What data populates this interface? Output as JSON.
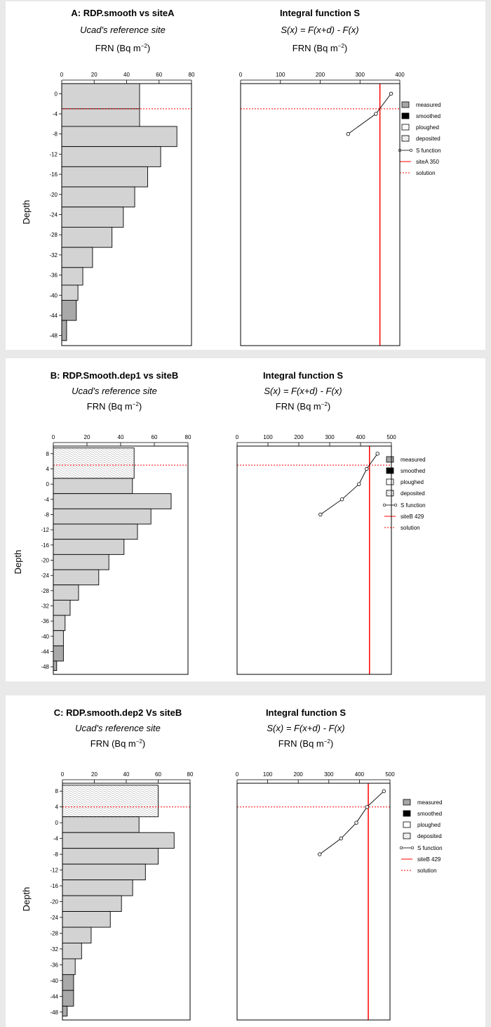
{
  "panels": [
    {
      "left": {
        "title": "A: RDP.smooth vs siteA",
        "subtitle": "Ucad's reference site",
        "xlabel": "FRN (Bq m",
        "xlabel_sup": "−2",
        "xlabel_close": ")",
        "ylabel": "Depth"
      },
      "right": {
        "title": "Integral function S",
        "subtitle": "S(x) = F(x+d) - F(x)",
        "xlabel": "FRN (Bq m",
        "xlabel_sup": "−2",
        "xlabel_close": ")"
      },
      "legend": {
        "measured": "measured",
        "smoothed": "smoothed",
        "ploughed": "ploughed",
        "deposited": "deposited",
        "sfunction": "S function",
        "site": "siteA 350",
        "solution": "solution"
      }
    },
    {
      "left": {
        "title": "B: RDP.Smooth.dep1 vs siteB",
        "subtitle": "Ucad's reference site",
        "xlabel": "FRN (Bq m",
        "xlabel_sup": "−2",
        "xlabel_close": ")",
        "ylabel": "Depth"
      },
      "right": {
        "title": "Integral function S",
        "subtitle": "S(x) = F(x+d) - F(x)",
        "xlabel": "FRN (Bq m",
        "xlabel_sup": "−2",
        "xlabel_close": ")"
      },
      "legend": {
        "measured": "measured",
        "smoothed": "smoothed",
        "ploughed": "ploughed",
        "deposited": "deposited",
        "sfunction": "S function",
        "site": "siteB 429",
        "solution": "solution"
      }
    },
    {
      "left": {
        "title": "C: RDP.smooth.dep2 Vs siteB",
        "subtitle": "Ucad's reference site",
        "xlabel": "FRN (Bq m",
        "xlabel_sup": "−2",
        "xlabel_close": ")",
        "ylabel": "Depth"
      },
      "right": {
        "title": "Integral function S",
        "subtitle": "S(x) = F(x+d) - F(x)",
        "xlabel": "FRN (Bq m",
        "xlabel_sup": "−2",
        "xlabel_close": ")"
      },
      "legend": {
        "measured": "measured",
        "smoothed": "smoothed",
        "ploughed": "ploughed",
        "deposited": "deposited",
        "sfunction": "S function",
        "site": "siteB 429",
        "solution": "solution"
      }
    }
  ],
  "colors": {
    "measured": "#a6a6a6",
    "smoothed": "#000000",
    "ploughed": "#ffffff",
    "deposited": "#d3d3d3",
    "site_line": "#ff0000",
    "solution_line": "#ff0000",
    "bar_fill": "#d3d3d3",
    "measured_bar_fill": "#a9a9a9"
  },
  "chart_data": [
    {
      "type": "bar",
      "orientation": "horizontal",
      "title": "A: RDP.smooth vs siteA",
      "subtitle": "Ucad's reference site",
      "xlabel": "FRN (Bq m−2)",
      "ylabel": "Depth",
      "xlim": [
        0,
        80
      ],
      "xticks": [
        0,
        20,
        40,
        60,
        80
      ],
      "ylim": [
        -50,
        2
      ],
      "yticks": [
        0,
        -4,
        -8,
        -12,
        -16,
        -20,
        -24,
        -28,
        -32,
        -36,
        -40,
        -44,
        -48
      ],
      "solution_depth": -3,
      "bars": [
        {
          "top": 2,
          "bottom": -3,
          "value": 48,
          "kind": "smoothed_fill"
        },
        {
          "top": -3,
          "bottom": -6.5,
          "value": 48,
          "kind": "smoothed_fill"
        },
        {
          "top": -6.5,
          "bottom": -10.5,
          "value": 71,
          "kind": "smoothed_fill"
        },
        {
          "top": -10.5,
          "bottom": -14.5,
          "value": 61,
          "kind": "smoothed_fill"
        },
        {
          "top": -14.5,
          "bottom": -18.5,
          "value": 53,
          "kind": "smoothed_fill"
        },
        {
          "top": -18.5,
          "bottom": -22.5,
          "value": 45,
          "kind": "smoothed_fill"
        },
        {
          "top": -22.5,
          "bottom": -26.5,
          "value": 38,
          "kind": "smoothed_fill"
        },
        {
          "top": -26.5,
          "bottom": -30.5,
          "value": 31,
          "kind": "smoothed_fill"
        },
        {
          "top": -30.5,
          "bottom": -34.5,
          "value": 19,
          "kind": "smoothed_fill"
        },
        {
          "top": -34.5,
          "bottom": -38,
          "value": 13,
          "kind": "smoothed_fill"
        },
        {
          "top": -38,
          "bottom": -41,
          "value": 10,
          "kind": "smoothed_fill"
        },
        {
          "top": -41,
          "bottom": -45,
          "value": 9,
          "kind": "measured"
        },
        {
          "top": -45,
          "bottom": -49,
          "value": 3,
          "kind": "measured"
        }
      ],
      "s_function": {
        "xlim": [
          0,
          400
        ],
        "xticks": [
          0,
          100,
          200,
          300,
          400
        ],
        "points": [
          [
            378,
            0
          ],
          [
            340,
            -4
          ],
          [
            270,
            -8
          ]
        ],
        "site_value": 350,
        "solution_depth": -3
      }
    },
    {
      "type": "bar",
      "orientation": "horizontal",
      "title": "B: RDP.Smooth.dep1 vs siteB",
      "subtitle": "Ucad's reference site",
      "xlabel": "FRN (Bq m−2)",
      "ylabel": "Depth",
      "xlim": [
        0,
        80
      ],
      "xticks": [
        0,
        20,
        40,
        60,
        80
      ],
      "ylim": [
        -50,
        10
      ],
      "yticks": [
        8,
        4,
        0,
        -4,
        -8,
        -12,
        -16,
        -20,
        -24,
        -28,
        -32,
        -36,
        -40,
        -44,
        -48
      ],
      "solution_depth": 5,
      "bars": [
        {
          "top": 9.5,
          "bottom": 1.5,
          "value": 48,
          "kind": "deposited"
        },
        {
          "top": 1.5,
          "bottom": -2.5,
          "value": 47,
          "kind": "smoothed_fill"
        },
        {
          "top": -2.5,
          "bottom": -6.5,
          "value": 70,
          "kind": "smoothed_fill"
        },
        {
          "top": -6.5,
          "bottom": -10.5,
          "value": 58,
          "kind": "smoothed_fill"
        },
        {
          "top": -10.5,
          "bottom": -14.5,
          "value": 50,
          "kind": "smoothed_fill"
        },
        {
          "top": -14.5,
          "bottom": -18.5,
          "value": 42,
          "kind": "smoothed_fill"
        },
        {
          "top": -18.5,
          "bottom": -22.5,
          "value": 33,
          "kind": "smoothed_fill"
        },
        {
          "top": -22.5,
          "bottom": -26.5,
          "value": 27,
          "kind": "smoothed_fill"
        },
        {
          "top": -26.5,
          "bottom": -30.5,
          "value": 15,
          "kind": "smoothed_fill"
        },
        {
          "top": -30.5,
          "bottom": -34.5,
          "value": 10,
          "kind": "smoothed_fill"
        },
        {
          "top": -34.5,
          "bottom": -38.5,
          "value": 7,
          "kind": "smoothed_fill"
        },
        {
          "top": -38.5,
          "bottom": -42.5,
          "value": 6,
          "kind": "smoothed_fill"
        },
        {
          "top": -42.5,
          "bottom": -46.5,
          "value": 6,
          "kind": "measured"
        },
        {
          "top": -46.5,
          "bottom": -49,
          "value": 2,
          "kind": "measured"
        }
      ],
      "s_function": {
        "xlim": [
          0,
          500
        ],
        "xticks": [
          0,
          100,
          200,
          300,
          400,
          500
        ],
        "points": [
          [
            455,
            8
          ],
          [
            420,
            4
          ],
          [
            395,
            0
          ],
          [
            340,
            -4
          ],
          [
            270,
            -8
          ]
        ],
        "site_value": 429,
        "solution_depth": 5
      }
    },
    {
      "type": "bar",
      "orientation": "horizontal",
      "title": "C: RDP.smooth.dep2 Vs siteB",
      "subtitle": "Ucad's reference site",
      "xlabel": "FRN (Bq m−2)",
      "ylabel": "Depth",
      "xlim": [
        0,
        80
      ],
      "xticks": [
        0,
        20,
        40,
        60,
        80
      ],
      "ylim": [
        -50,
        10
      ],
      "yticks": [
        8,
        4,
        0,
        -4,
        -8,
        -12,
        -16,
        -20,
        -24,
        -28,
        -32,
        -36,
        -40,
        -44,
        -48
      ],
      "solution_depth": 4,
      "bars": [
        {
          "top": 9.5,
          "bottom": 1.5,
          "value": 60,
          "kind": "deposited"
        },
        {
          "top": 1.5,
          "bottom": -2.5,
          "value": 48,
          "kind": "smoothed_fill"
        },
        {
          "top": -2.5,
          "bottom": -6.5,
          "value": 70,
          "kind": "smoothed_fill"
        },
        {
          "top": -6.5,
          "bottom": -10.5,
          "value": 60,
          "kind": "smoothed_fill"
        },
        {
          "top": -10.5,
          "bottom": -14.5,
          "value": 52,
          "kind": "smoothed_fill"
        },
        {
          "top": -14.5,
          "bottom": -18.5,
          "value": 44,
          "kind": "smoothed_fill"
        },
        {
          "top": -18.5,
          "bottom": -22.5,
          "value": 37,
          "kind": "smoothed_fill"
        },
        {
          "top": -22.5,
          "bottom": -26.5,
          "value": 30,
          "kind": "smoothed_fill"
        },
        {
          "top": -26.5,
          "bottom": -30.5,
          "value": 18,
          "kind": "smoothed_fill"
        },
        {
          "top": -30.5,
          "bottom": -34.5,
          "value": 12,
          "kind": "smoothed_fill"
        },
        {
          "top": -34.5,
          "bottom": -38.5,
          "value": 8,
          "kind": "smoothed_fill"
        },
        {
          "top": -38.5,
          "bottom": -42.5,
          "value": 7,
          "kind": "measured"
        },
        {
          "top": -42.5,
          "bottom": -46.5,
          "value": 7,
          "kind": "measured"
        },
        {
          "top": -46.5,
          "bottom": -49,
          "value": 3,
          "kind": "measured"
        }
      ],
      "s_function": {
        "xlim": [
          0,
          500
        ],
        "xticks": [
          0,
          100,
          200,
          300,
          400,
          500
        ],
        "points": [
          [
            480,
            8
          ],
          [
            425,
            4
          ],
          [
            390,
            0
          ],
          [
            340,
            -4
          ],
          [
            270,
            -8
          ]
        ],
        "site_value": 429,
        "solution_depth": 4
      }
    }
  ]
}
